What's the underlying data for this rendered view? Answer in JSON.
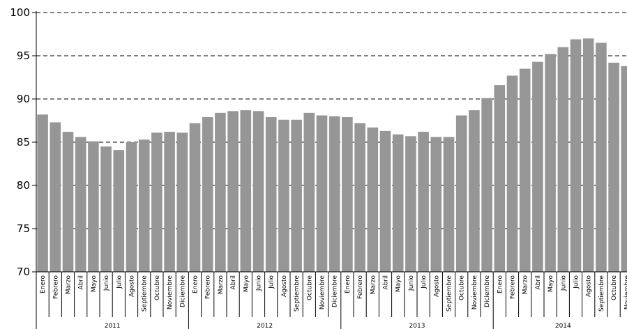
{
  "chart_data": {
    "type": "bar",
    "title": "",
    "xlabel": "",
    "ylabel": "",
    "ylim": [
      70,
      100
    ],
    "yticks": [
      70,
      75,
      80,
      85,
      90,
      95,
      100
    ],
    "grid": "horizontal-dashed",
    "bar_color": "#969696",
    "months_2011_2013": [
      "Enero",
      "Febrero",
      "Marzo",
      "Abril",
      "Mayo",
      "Junio",
      "Julio",
      "Agosto",
      "Septiembre",
      "Octubre",
      "Noviembre",
      "Diciembre"
    ],
    "months_2014": [
      "Enero",
      "Febrero",
      "Marzo",
      "Abril",
      "Mayo",
      "Junio",
      "Julio",
      "Agosto",
      "Septiembre",
      "Octubre",
      "Noviembre"
    ],
    "years": [
      {
        "label": "2011",
        "values": [
          88.2,
          87.3,
          86.2,
          85.6,
          85.1,
          84.5,
          84.1,
          85.0,
          85.3,
          86.1,
          86.2,
          86.1
        ]
      },
      {
        "label": "2012",
        "values": [
          87.2,
          87.9,
          88.4,
          88.6,
          88.7,
          88.6,
          87.9,
          87.6,
          87.6,
          88.4,
          88.1,
          88.0
        ]
      },
      {
        "label": "2013",
        "values": [
          87.9,
          87.2,
          86.7,
          86.3,
          85.9,
          85.7,
          86.2,
          85.6,
          85.6,
          88.1,
          88.7,
          90.1
        ]
      },
      {
        "label": "2014",
        "values": [
          91.6,
          92.7,
          93.5,
          94.3,
          95.2,
          96.0,
          96.9,
          97.0,
          96.5,
          94.2,
          93.8
        ]
      }
    ]
  }
}
